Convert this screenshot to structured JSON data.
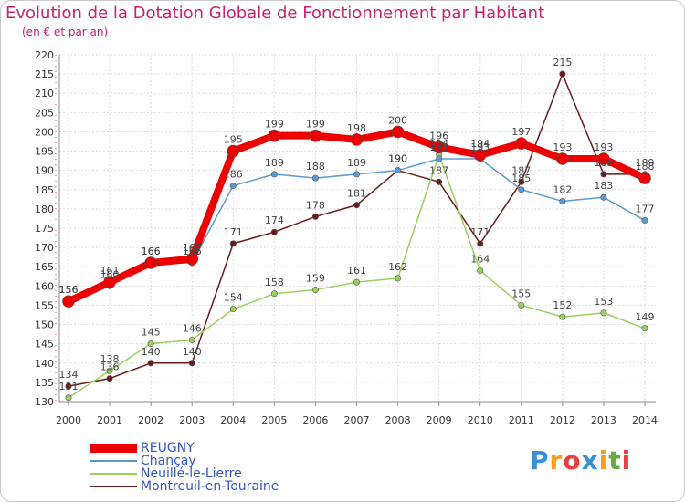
{
  "chart_data": {
    "type": "line",
    "title": "Evolution de la Dotation Globale de Fonctionnement par Habitant",
    "subtitle": "(en € et par an)",
    "xlabel": "",
    "ylabel": "",
    "ylim": [
      130,
      220
    ],
    "yticks": [
      130,
      135,
      140,
      145,
      150,
      155,
      160,
      165,
      170,
      175,
      180,
      185,
      190,
      195,
      200,
      205,
      210,
      215,
      220
    ],
    "categories": [
      "2000",
      "2001",
      "2002",
      "2003",
      "2004",
      "2005",
      "2006",
      "2007",
      "2008",
      "2009",
      "2010",
      "2011",
      "2012",
      "2013",
      "2014"
    ],
    "series": [
      {
        "name": "Montreuil-en-Touraine",
        "color": "#6b1a1a",
        "values": [
          134,
          136,
          140,
          140,
          171,
          174,
          178,
          181,
          190,
          187,
          171,
          187,
          215,
          189,
          189
        ]
      },
      {
        "name": "Neuillé-le-Lierre",
        "color": "#99d060",
        "values": [
          131,
          138,
          145,
          146,
          154,
          158,
          159,
          161,
          162,
          194,
          164,
          155,
          152,
          153,
          149
        ]
      },
      {
        "name": "Chançay",
        "color": "#5b9bd5",
        "values": [
          156,
          160,
          166,
          166,
          186,
          189,
          188,
          189,
          190,
          193,
          193,
          185,
          182,
          183,
          177
        ]
      },
      {
        "name": "REUGNY",
        "color": "#ee0000",
        "values": [
          156,
          161,
          166,
          167,
          195,
          199,
          199,
          198,
          200,
          196,
          194,
          197,
          193,
          193,
          188
        ]
      }
    ],
    "data_labels": [
      {
        "series": "Montreuil-en-Touraine",
        "labels": [
          "134",
          "136",
          "140",
          "140",
          "171",
          "174",
          "178",
          "181",
          "190",
          "187",
          "171",
          "187",
          "215",
          "189",
          "189"
        ]
      },
      {
        "series": "Neuillé-le-Lierre",
        "labels": [
          "131",
          "138",
          "145",
          "146",
          "154",
          "158",
          "159",
          "161",
          "162",
          "194",
          "164",
          "155",
          "152",
          "153",
          "149"
        ]
      },
      {
        "series": "Chançay",
        "labels": [
          "156",
          "160",
          "166",
          "166",
          "186",
          "189",
          "188",
          "189",
          "190",
          "193",
          "193",
          "185",
          "182",
          "183",
          "177"
        ]
      },
      {
        "series": "REUGNY",
        "labels": [
          "156",
          "161",
          "166",
          "167",
          "195",
          "199",
          "199",
          "198",
          "200",
          "196",
          "194",
          "197",
          "193",
          "193",
          "188"
        ]
      }
    ]
  },
  "legend": {
    "items": [
      {
        "label": "REUGNY",
        "color": "#ee0000"
      },
      {
        "label": "Chançay",
        "color": "#5b9bd5"
      },
      {
        "label": "Neuillé-le-Lierre",
        "color": "#99d060"
      },
      {
        "label": "Montreuil-en-Touraine",
        "color": "#6b1a1a"
      }
    ]
  },
  "logo": {
    "letters": [
      "P",
      "r",
      "o",
      "x",
      "i",
      "t",
      "i"
    ],
    "colors": [
      "#3a8fd8",
      "#f0a020",
      "#e84040",
      "#3a8fd8",
      "#f0a020",
      "#60b040",
      "#e84040"
    ]
  }
}
